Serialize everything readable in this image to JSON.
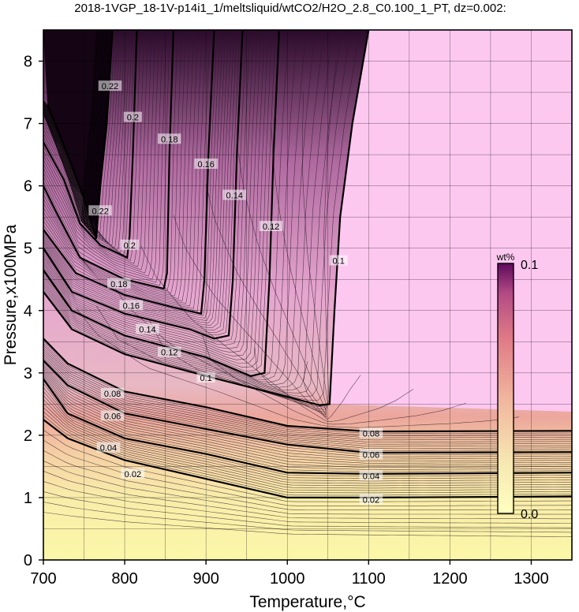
{
  "chart_data": {
    "type": "contour",
    "title": "2018-1VGP_18-1V-p14i1_1/meltsliquid/wtCO2/H2O_2.8_C0.100_1_PT, dz=0.002:",
    "xlabel": "Temperature,°C",
    "ylabel": "Pressure,x100MPa",
    "xlim": [
      700,
      1350
    ],
    "ylim": [
      0,
      8.5
    ],
    "x_ticks": [
      "700",
      "800",
      "900",
      "1000",
      "1100",
      "1200",
      "1300"
    ],
    "y_ticks": [
      "0",
      "1",
      "2",
      "3",
      "4",
      "5",
      "6",
      "7",
      "8"
    ],
    "grid": true,
    "colorbar": {
      "unit": "wt%",
      "min_label": "0.0",
      "max_label": "0.1",
      "colors": [
        "#ffffc0",
        "#f7e8b2",
        "#f2b79f",
        "#e07a86",
        "#b44a85",
        "#5e0a5c"
      ],
      "saturated_color": "#fcc8f0",
      "low_color": "#fbf7a8"
    },
    "contour_interval": 0.002,
    "contours": [
      {
        "level": 0.02,
        "label": "0.02",
        "points": [
          [
            700,
            2.25
          ],
          [
            730,
            1.95
          ],
          [
            800,
            1.6
          ],
          [
            900,
            1.3
          ],
          [
            1000,
            1.0
          ],
          [
            1100,
            1.0
          ],
          [
            1350,
            1.02
          ]
        ],
        "labels_at": [
          [
            810,
            1.38
          ],
          [
            1103,
            0.97
          ]
        ]
      },
      {
        "level": 0.04,
        "label": "0.04",
        "points": [
          [
            700,
            2.9
          ],
          [
            730,
            2.35
          ],
          [
            800,
            1.95
          ],
          [
            900,
            1.7
          ],
          [
            1000,
            1.4
          ],
          [
            1100,
            1.38
          ],
          [
            1350,
            1.4
          ]
        ],
        "labels_at": [
          [
            780,
            1.8
          ],
          [
            1103,
            1.35
          ]
        ]
      },
      {
        "level": 0.06,
        "label": "0.06",
        "points": [
          [
            700,
            3.2
          ],
          [
            730,
            2.8
          ],
          [
            800,
            2.35
          ],
          [
            900,
            2.1
          ],
          [
            1000,
            1.85
          ],
          [
            1100,
            1.72
          ],
          [
            1350,
            1.73
          ]
        ],
        "labels_at": [
          [
            785,
            2.31
          ],
          [
            1103,
            1.69
          ]
        ]
      },
      {
        "level": 0.08,
        "label": "0.08",
        "points": [
          [
            700,
            3.55
          ],
          [
            730,
            3.15
          ],
          [
            800,
            2.7
          ],
          [
            900,
            2.45
          ],
          [
            1000,
            2.15
          ],
          [
            1100,
            2.06
          ],
          [
            1350,
            2.07
          ]
        ],
        "labels_at": [
          [
            785,
            2.67
          ],
          [
            1103,
            2.03
          ]
        ]
      },
      {
        "level": 0.1,
        "label": "0.1",
        "points": [
          [
            1100,
            8.5
          ],
          [
            1080,
            7.0
          ],
          [
            1065,
            5.5
          ],
          [
            1058,
            4.0
          ],
          [
            1052,
            2.5
          ],
          [
            1040,
            2.48
          ],
          [
            990,
            2.65
          ],
          [
            900,
            2.95
          ],
          [
            800,
            3.3
          ],
          [
            735,
            3.7
          ],
          [
            700,
            4.3
          ]
        ],
        "labels_at": [
          [
            1063,
            4.8
          ],
          [
            900,
            2.92
          ]
        ]
      },
      {
        "level": 0.12,
        "label": "0.12",
        "points": [
          [
            990,
            8.5
          ],
          [
            983,
            6.5
          ],
          [
            978,
            4.5
          ],
          [
            972,
            3.0
          ],
          [
            955,
            2.95
          ],
          [
            900,
            3.25
          ],
          [
            800,
            3.6
          ],
          [
            735,
            4.0
          ],
          [
            700,
            4.65
          ]
        ],
        "labels_at": [
          [
            980,
            5.35
          ],
          [
            855,
            3.33
          ]
        ]
      },
      {
        "level": 0.14,
        "label": "0.14",
        "points": [
          [
            945,
            8.5
          ],
          [
            938,
            6.5
          ],
          [
            933,
            4.5
          ],
          [
            928,
            3.6
          ],
          [
            910,
            3.55
          ],
          [
            880,
            3.7
          ],
          [
            800,
            3.95
          ],
          [
            735,
            4.3
          ],
          [
            700,
            5.0
          ]
        ],
        "labels_at": [
          [
            935,
            5.85
          ],
          [
            828,
            3.7
          ]
        ]
      },
      {
        "level": 0.16,
        "label": "0.16",
        "points": [
          [
            910,
            8.5
          ],
          [
            903,
            6.5
          ],
          [
            898,
            4.5
          ],
          [
            894,
            3.95
          ],
          [
            860,
            4.05
          ],
          [
            800,
            4.25
          ],
          [
            740,
            4.6
          ],
          [
            700,
            5.3
          ]
        ],
        "labels_at": [
          [
            900,
            6.35
          ],
          [
            808,
            4.08
          ]
        ]
      },
      {
        "level": 0.18,
        "label": "0.18",
        "points": [
          [
            860,
            8.5
          ],
          [
            855,
            6.5
          ],
          [
            852,
            4.6
          ],
          [
            848,
            4.35
          ],
          [
            800,
            4.5
          ],
          [
            745,
            4.85
          ],
          [
            715,
            5.6
          ],
          [
            700,
            6.0
          ]
        ],
        "labels_at": [
          [
            855,
            6.75
          ],
          [
            793,
            4.43
          ]
        ]
      },
      {
        "level": 0.2,
        "label": "0.2",
        "points": [
          [
            815,
            8.5
          ],
          [
            810,
            6.5
          ],
          [
            806,
            5.2
          ],
          [
            803,
            4.85
          ],
          [
            770,
            5.05
          ],
          [
            745,
            5.4
          ],
          [
            725,
            6.1
          ],
          [
            700,
            6.7
          ]
        ],
        "labels_at": [
          [
            810,
            7.1
          ],
          [
            806,
            5.05
          ]
        ]
      },
      {
        "level": 0.22,
        "label": "0.22",
        "points": [
          [
            785,
            8.5
          ],
          [
            778,
            7.0
          ],
          [
            770,
            6.0
          ],
          [
            765,
            5.15
          ],
          [
            750,
            5.8
          ],
          [
            730,
            6.5
          ],
          [
            705,
            7.3
          ]
        ],
        "labels_at": [
          [
            782,
            7.6
          ],
          [
            770,
            5.6
          ]
        ]
      }
    ]
  }
}
